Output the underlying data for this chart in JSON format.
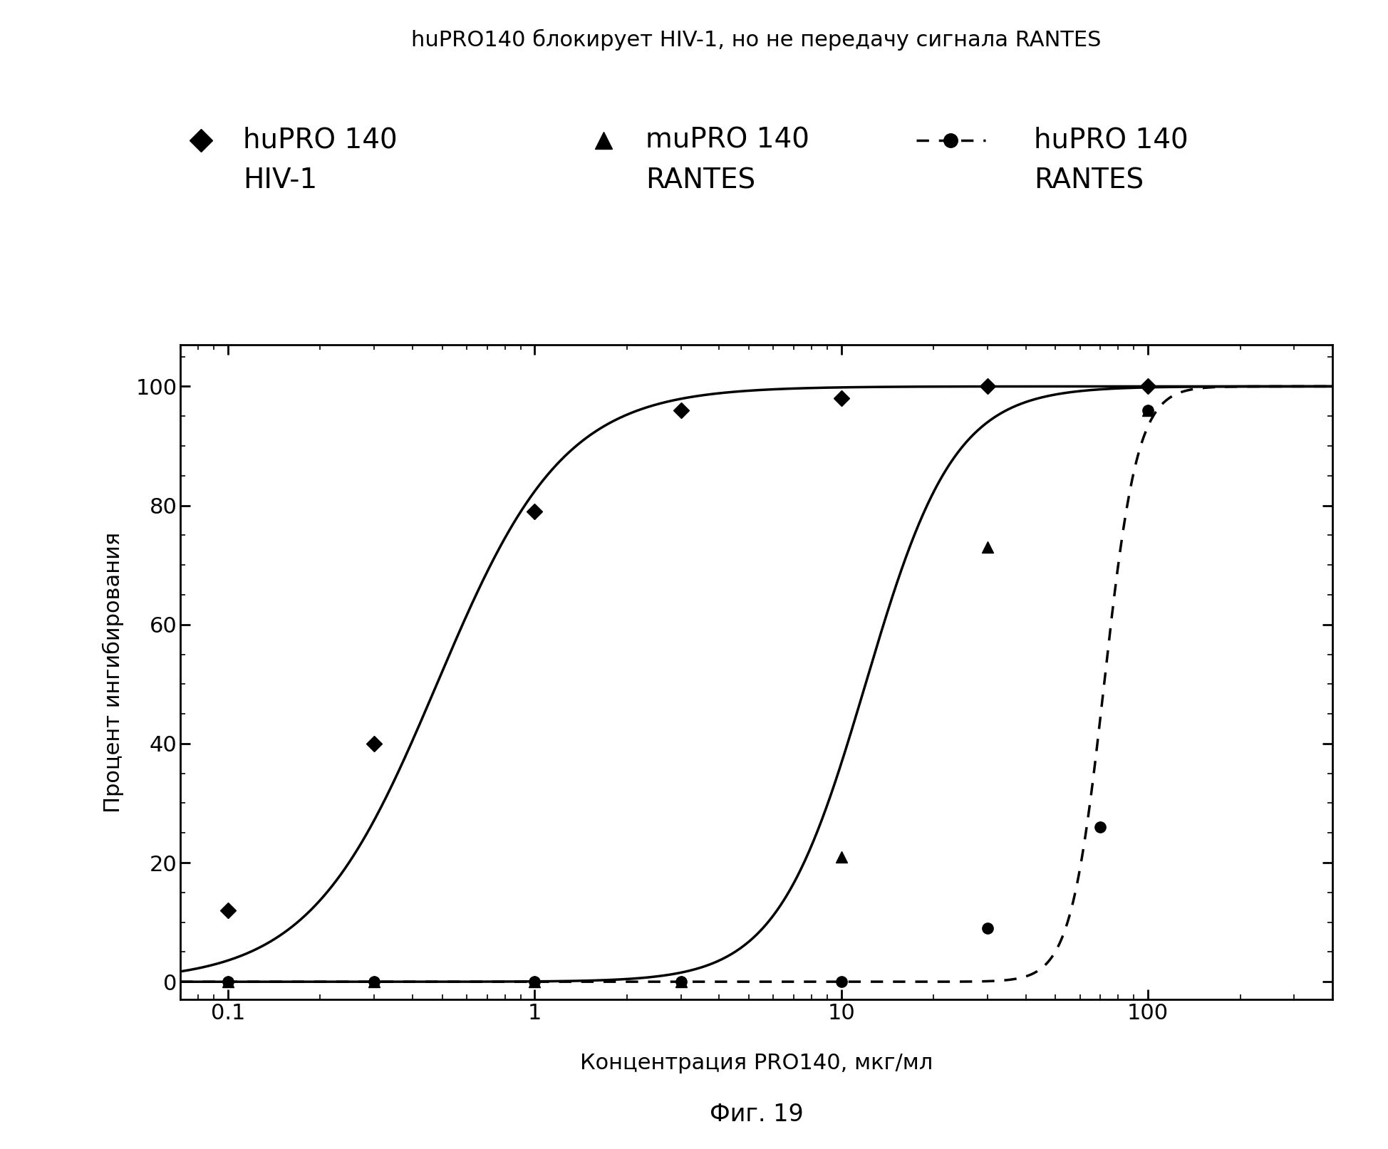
{
  "title": "huPRO140 блокирует HIV-1, но не передачу сигнала RANTES",
  "xlabel": "Концентрация PRO140, мкг/мл",
  "ylabel": "Процент ингибирования",
  "fig_caption": "Фиг. 19",
  "legend_line1": [
    "huPRO 140",
    "muPRO 140",
    "huPRO 140"
  ],
  "legend_line2": [
    "HIV-1",
    "RANTES",
    "RANTES"
  ],
  "series1_x": [
    0.1,
    0.3,
    1.0,
    3.0,
    10.0,
    30.0,
    100.0
  ],
  "series1_y": [
    12,
    40,
    79,
    96,
    98,
    100,
    100
  ],
  "series2_x": [
    0.1,
    0.3,
    1.0,
    3.0,
    10.0,
    30.0,
    100.0
  ],
  "series2_y": [
    0,
    0,
    0,
    0,
    21,
    73,
    96
  ],
  "series3_x": [
    0.1,
    0.3,
    1.0,
    3.0,
    10.0,
    30.0,
    70.0,
    100.0
  ],
  "series3_y": [
    0,
    0,
    0,
    0,
    0,
    9,
    26,
    96
  ],
  "sig1_x50": 0.48,
  "sig1_hill": 2.1,
  "sig2_x50": 12.0,
  "sig2_hill": 3.0,
  "sig3_x50": 72.0,
  "sig3_hill": 8.0,
  "xlim_log": [
    0.07,
    400
  ],
  "ylim": [
    -3,
    107
  ],
  "yticks": [
    0,
    20,
    40,
    60,
    80,
    100
  ],
  "xtick_labels": [
    "0.1",
    "1",
    "10",
    "100"
  ],
  "xtick_vals": [
    0.1,
    1.0,
    10.0,
    100.0
  ],
  "background_color": "#ffffff",
  "title_fontsize": 22,
  "label_fontsize": 22,
  "tick_fontsize": 22,
  "legend_fontsize": 28,
  "caption_fontsize": 24
}
